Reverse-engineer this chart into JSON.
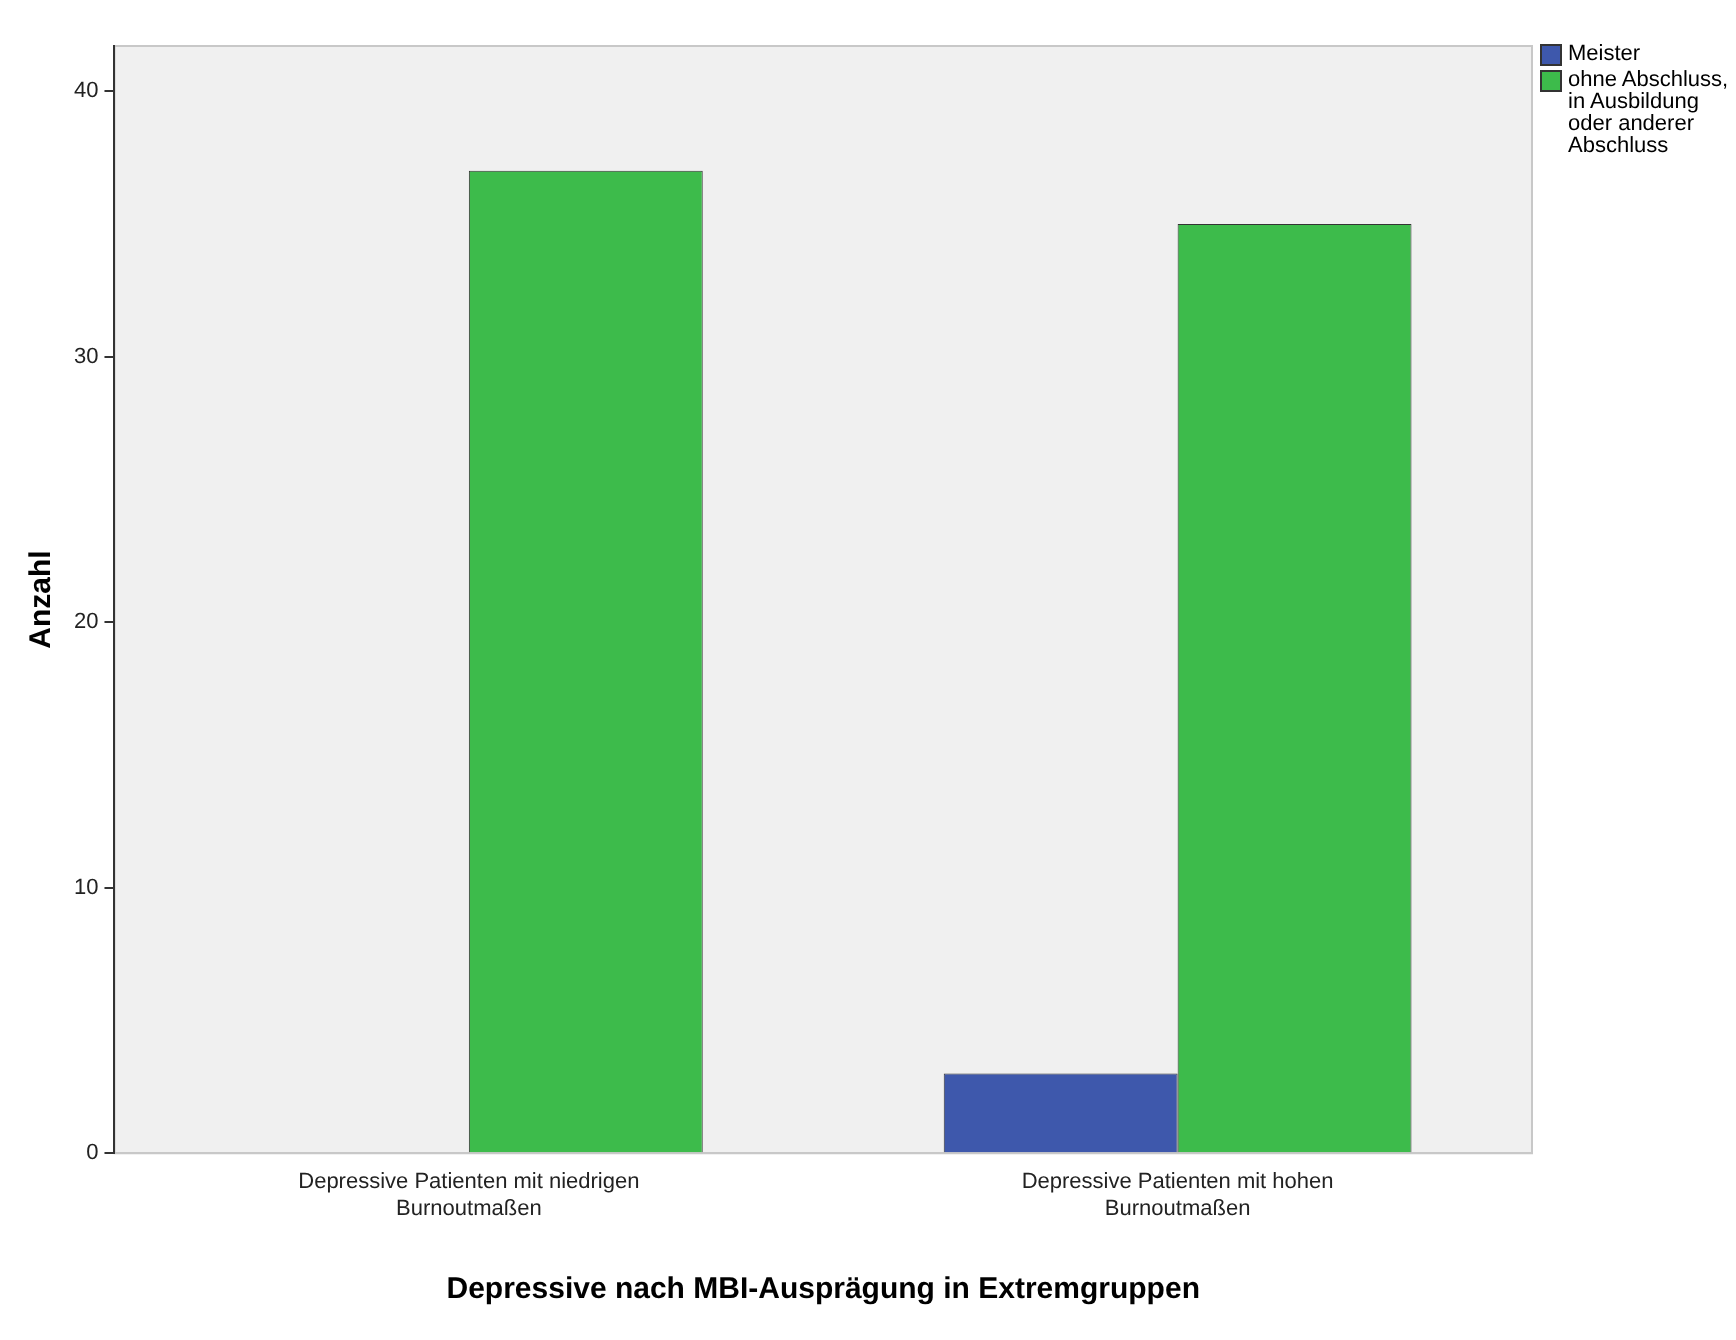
{
  "chart_data": {
    "type": "bar",
    "xlabel": "Depressive nach MBI-Ausprägung in Extremgruppen",
    "ylabel": "Anzahl",
    "categories": [
      "Depressive Patienten mit niedrigen Burnoutmaßen",
      "Depressive Patienten mit hohen Burnoutmaßen"
    ],
    "series": [
      {
        "name": "Meister",
        "color": "#3e58ac",
        "values": [
          0,
          3
        ]
      },
      {
        "name": "ohne Abschluss, in Ausbildung oder anderer Abschluss",
        "color": "#3dbb4b",
        "values": [
          37,
          35
        ]
      }
    ],
    "ylim": [
      0,
      41.7
    ],
    "yticks": [
      0,
      10,
      20,
      30,
      40
    ],
    "grid": false,
    "legend": "top right"
  }
}
